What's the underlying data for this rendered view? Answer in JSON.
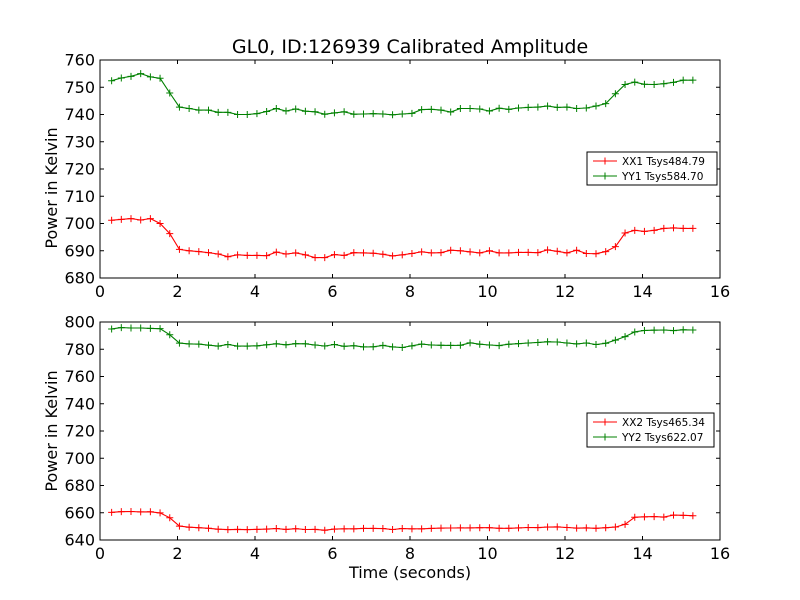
{
  "chart_data": [
    {
      "type": "line",
      "title": "GL0, ID:126939 Calibrated Amplitude",
      "xlabel": "",
      "ylabel": "Power in Kelvin",
      "xlim": [
        0,
        16
      ],
      "ylim": [
        680,
        760
      ],
      "xticks": [
        "0",
        "2",
        "4",
        "6",
        "8",
        "10",
        "12",
        "14",
        "16"
      ],
      "yticks": [
        "680",
        "690",
        "700",
        "710",
        "720",
        "730",
        "740",
        "750",
        "760"
      ],
      "grid": false,
      "legend_position": "right",
      "x": [
        0.3,
        0.55,
        0.8,
        1.05,
        1.3,
        1.55,
        1.8,
        2.05,
        2.3,
        2.55,
        2.8,
        3.05,
        3.3,
        3.55,
        3.8,
        4.05,
        4.3,
        4.55,
        4.8,
        5.05,
        5.3,
        5.55,
        5.8,
        6.05,
        6.3,
        6.55,
        6.8,
        7.05,
        7.3,
        7.55,
        7.8,
        8.05,
        8.3,
        8.55,
        8.8,
        9.05,
        9.3,
        9.55,
        9.8,
        10.05,
        10.3,
        10.55,
        10.8,
        11.05,
        11.3,
        11.55,
        11.8,
        12.05,
        12.3,
        12.55,
        12.8,
        13.05,
        13.3,
        13.55,
        13.8,
        14.05,
        14.3,
        14.55,
        14.8,
        15.05,
        15.3
      ],
      "series": [
        {
          "name": "XX1 Tsys484.79",
          "color": "#ff0000",
          "values": [
            701.2,
            701.5,
            701.8,
            701.3,
            701.8,
            700,
            696.3,
            690.5,
            690,
            689.7,
            689.3,
            688.8,
            687.8,
            688.5,
            688.3,
            688.3,
            688.2,
            689.5,
            688.8,
            689.2,
            688.5,
            687.5,
            687.5,
            688.6,
            688.3,
            689.3,
            689.2,
            689.1,
            688.7,
            688.1,
            688.5,
            689,
            689.6,
            689.2,
            689.3,
            690.2,
            690,
            689.6,
            689.2,
            690,
            689.2,
            689.2,
            689.4,
            689.4,
            689.3,
            690.3,
            689.8,
            689.2,
            690.2,
            689,
            688.9,
            689.7,
            691.5,
            696.5,
            697.5,
            697.1,
            697.5,
            698.2,
            698.4,
            698.2,
            698.2
          ]
        },
        {
          "name": "YY1 Tsys584.70",
          "color": "#008000",
          "values": [
            752.4,
            753.4,
            754,
            755,
            753.8,
            753.3,
            747.9,
            742.7,
            742.2,
            741.6,
            741.6,
            740.8,
            740.8,
            740,
            740,
            740.3,
            741.1,
            742.2,
            741.3,
            742,
            741.2,
            741,
            740.1,
            740.6,
            741,
            740.1,
            740.2,
            740.3,
            740.2,
            739.9,
            740.2,
            740.4,
            741.8,
            741.9,
            741.6,
            740.9,
            742.2,
            742.2,
            742,
            741.3,
            742.3,
            741.9,
            742.4,
            742.6,
            742.7,
            743.1,
            742.6,
            742.7,
            742.2,
            742.4,
            743.1,
            744,
            747.6,
            751,
            751.9,
            751.1,
            751,
            751.3,
            751.8,
            752.6,
            752.6
          ]
        }
      ]
    },
    {
      "type": "line",
      "title": "",
      "xlabel": "Time (seconds)",
      "ylabel": "Power in Kelvin",
      "xlim": [
        0,
        16
      ],
      "ylim": [
        640,
        800
      ],
      "xticks": [
        "0",
        "2",
        "4",
        "6",
        "8",
        "10",
        "12",
        "14",
        "16"
      ],
      "yticks": [
        "640",
        "660",
        "680",
        "700",
        "720",
        "740",
        "760",
        "780",
        "800"
      ],
      "grid": false,
      "legend_position": "right",
      "x": [
        0.3,
        0.55,
        0.8,
        1.05,
        1.3,
        1.55,
        1.8,
        2.05,
        2.3,
        2.55,
        2.8,
        3.05,
        3.3,
        3.55,
        3.8,
        4.05,
        4.3,
        4.55,
        4.8,
        5.05,
        5.3,
        5.55,
        5.8,
        6.05,
        6.3,
        6.55,
        6.8,
        7.05,
        7.3,
        7.55,
        7.8,
        8.05,
        8.3,
        8.55,
        8.8,
        9.05,
        9.3,
        9.55,
        9.8,
        10.05,
        10.3,
        10.55,
        10.8,
        11.05,
        11.3,
        11.55,
        11.8,
        12.05,
        12.3,
        12.55,
        12.8,
        13.05,
        13.3,
        13.55,
        13.8,
        14.05,
        14.3,
        14.55,
        14.8,
        15.05,
        15.3
      ],
      "series": [
        {
          "name": "XX2 Tsys465.34",
          "color": "#ff0000",
          "values": [
            660.3,
            660.8,
            660.9,
            660.6,
            660.7,
            659.9,
            656.3,
            650.2,
            649.4,
            649,
            648.6,
            647.9,
            647.6,
            647.8,
            647.6,
            647.8,
            648,
            648.4,
            647.8,
            648.3,
            647.7,
            647.8,
            647.2,
            648,
            648.2,
            648.2,
            648.5,
            648.5,
            648.4,
            647.7,
            648.4,
            648.2,
            648.2,
            648.5,
            648.7,
            648.8,
            648.9,
            648.9,
            649,
            649,
            648.6,
            648.6,
            648.9,
            649.2,
            649.1,
            649.5,
            649.6,
            649.2,
            648.7,
            648.9,
            648.6,
            649,
            649.5,
            651.5,
            656.7,
            657,
            657.2,
            656.8,
            658.3,
            658.1,
            657.8
          ]
        },
        {
          "name": "YY2 Tsys622.07",
          "color": "#008000",
          "values": [
            794.9,
            795.9,
            795.6,
            795.6,
            795.3,
            795.1,
            790.6,
            784.5,
            783.9,
            783.8,
            783,
            782.3,
            783.5,
            782.3,
            782.3,
            782.5,
            783.3,
            784,
            783.3,
            784.1,
            784,
            783.1,
            782.4,
            783.5,
            782.2,
            782.6,
            781.7,
            781.8,
            782.8,
            781.7,
            781.3,
            782.5,
            783.8,
            783.1,
            782.9,
            782.8,
            782.9,
            784.7,
            783.7,
            783.1,
            782.7,
            783.7,
            784.1,
            784.6,
            785,
            785.5,
            785.3,
            784.6,
            783.9,
            784.6,
            783.5,
            784.4,
            786.7,
            789.3,
            792.7,
            793.8,
            794,
            794.1,
            793.7,
            794.3,
            794.1
          ]
        }
      ]
    }
  ]
}
